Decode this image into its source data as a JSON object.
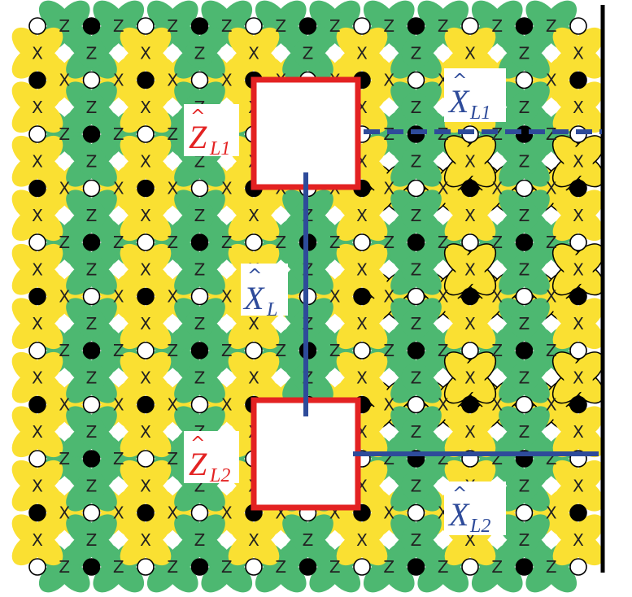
{
  "colors": {
    "x_stabilizer": "#FAE032",
    "z_stabilizer": "#4DB871",
    "data_qubit": "#000000",
    "ancilla_qubit": "#FFFFFF",
    "hole_boundary": "#E32222",
    "logical_operator": "#2E4B9A",
    "edge": "#000000"
  },
  "lattice": {
    "columns": 11,
    "rows": 11,
    "x_label": "X",
    "z_label": "Z",
    "open_boundary": "right"
  },
  "labels": {
    "z_l1": "Z",
    "z_l1_sub": "L1",
    "z_l2": "Z",
    "z_l2_sub": "L2",
    "x_l": "X",
    "x_l_sub": "L",
    "x_l1": "X",
    "x_l1_sub": "L1",
    "x_l2": "X",
    "x_l2_sub": "L2",
    "hat": "^"
  }
}
